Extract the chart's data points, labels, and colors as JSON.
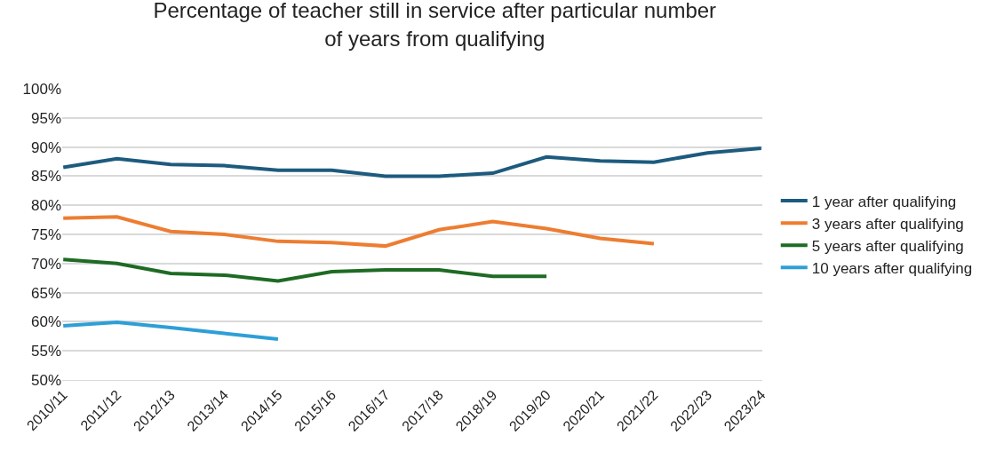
{
  "chart_data": {
    "type": "line",
    "title": "Percentage of teacher still in service after particular number of years from qualifying",
    "categories": [
      "2010/11",
      "2011/12",
      "2012/13",
      "2013/14",
      "2014/15",
      "2015/16",
      "2016/17",
      "2017/18",
      "2018/19",
      "2019/20",
      "2020/21",
      "2021/22",
      "2022/23",
      "2023/24"
    ],
    "series": [
      {
        "name": "1 year after qualifying",
        "color": "#1d5b7e",
        "values": [
          86.5,
          88,
          87,
          86.8,
          86,
          86,
          85,
          85,
          85.5,
          88.3,
          87.6,
          87.4,
          89,
          89.8
        ]
      },
      {
        "name": "3 years after qualifying",
        "color": "#ed7d31",
        "values": [
          77.8,
          78,
          75.5,
          75,
          73.8,
          73.6,
          73,
          75.8,
          77.2,
          76,
          74.3,
          73.4,
          null,
          null
        ]
      },
      {
        "name": "5 years after qualifying",
        "color": "#1e6b23",
        "values": [
          70.7,
          70,
          68.3,
          68,
          67,
          68.6,
          68.9,
          68.9,
          67.8,
          67.8,
          null,
          null,
          null,
          null
        ]
      },
      {
        "name": "10 years after qualifying",
        "color": "#2e9fd6",
        "values": [
          59.3,
          59.9,
          59,
          58,
          57,
          null,
          null,
          null,
          null,
          null,
          null,
          null,
          null,
          null
        ]
      }
    ],
    "ylim": [
      50,
      100
    ],
    "yticks": [
      {
        "value": 50,
        "label": "50%"
      },
      {
        "value": 55,
        "label": "55%"
      },
      {
        "value": 60,
        "label": "60%"
      },
      {
        "value": 65,
        "label": "65%"
      },
      {
        "value": 70,
        "label": "70%"
      },
      {
        "value": 75,
        "label": "75%"
      },
      {
        "value": 80,
        "label": "80%"
      },
      {
        "value": 85,
        "label": "85%"
      },
      {
        "value": 90,
        "label": "90%"
      },
      {
        "value": 95,
        "label": "95%"
      },
      {
        "value": 100,
        "label": "100%"
      }
    ],
    "grid": "y",
    "legend": "right",
    "marker": "none",
    "line_style": "solid"
  }
}
